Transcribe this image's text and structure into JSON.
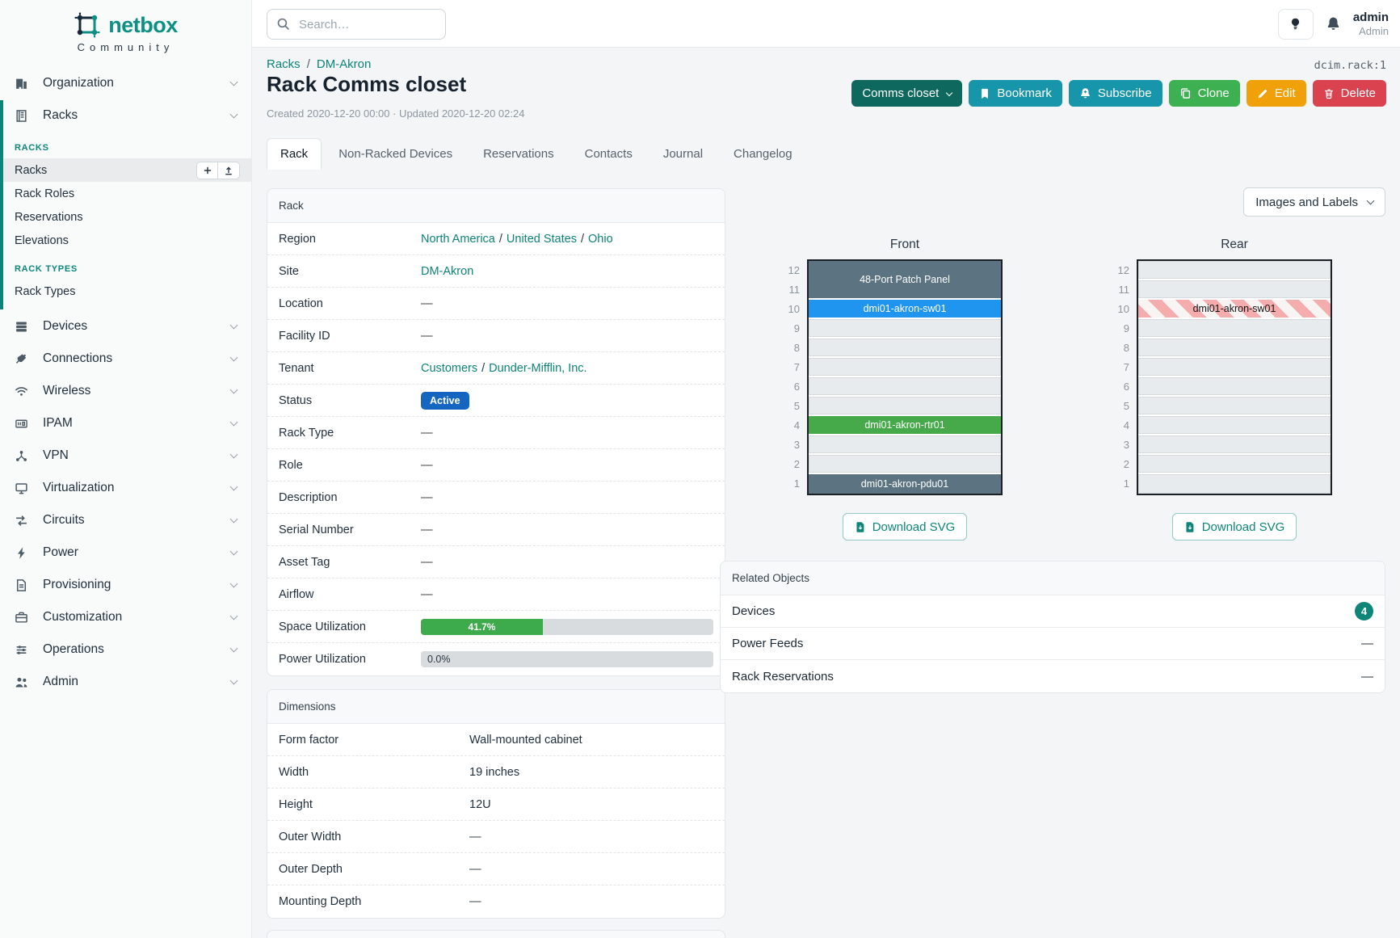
{
  "brand": {
    "name": "netbox",
    "subtitle": "Community"
  },
  "topbar": {
    "search_placeholder": "Search…",
    "user_name": "admin",
    "user_role": "Admin"
  },
  "object_type_id": "dcim.rack:1",
  "breadcrumb": {
    "items": [
      "Racks",
      "DM-Akron"
    ],
    "separator": "/"
  },
  "page": {
    "title": "Rack Comms closet",
    "meta": "Created 2020-12-20 00:00 · Updated 2020-12-20 02:24"
  },
  "actions": [
    {
      "name": "status-dropdown-button",
      "label": "Comms closet",
      "icon_right": "chevron-down-icon",
      "bg": "#0e685e"
    },
    {
      "name": "bookmark-button",
      "label": "Bookmark",
      "icon": "bookmark-icon",
      "bg": "#1795aa"
    },
    {
      "name": "subscribe-button",
      "label": "Subscribe",
      "icon": "bell-plus-icon",
      "bg": "#1795aa"
    },
    {
      "name": "clone-button",
      "label": "Clone",
      "icon": "copy-icon",
      "bg": "#3db052"
    },
    {
      "name": "edit-button",
      "label": "Edit",
      "icon": "pencil-icon",
      "bg": "#f0a009"
    },
    {
      "name": "delete-button",
      "label": "Delete",
      "icon": "trash-icon",
      "bg": "#d9424e"
    }
  ],
  "tabs": [
    {
      "label": "Rack",
      "active": true
    },
    {
      "label": "Non-Racked Devices"
    },
    {
      "label": "Reservations"
    },
    {
      "label": "Contacts"
    },
    {
      "label": "Journal"
    },
    {
      "label": "Changelog"
    }
  ],
  "sidebar": {
    "blocks": [
      {
        "type": "item",
        "icon": "organization-icon",
        "label": "Organization",
        "chevron": true
      },
      {
        "type": "accent",
        "children": [
          {
            "type": "item",
            "icon": "racks-icon",
            "label": "Racks",
            "chevron": true
          },
          {
            "type": "section",
            "label": "RACKS"
          },
          {
            "type": "subitem",
            "label": "Racks",
            "active": true,
            "action_icons": [
              "plus-icon",
              "upload-icon"
            ]
          },
          {
            "type": "subitem",
            "label": "Rack Roles"
          },
          {
            "type": "subitem",
            "label": "Reservations"
          },
          {
            "type": "subitem",
            "label": "Elevations"
          },
          {
            "type": "section",
            "label": "RACK TYPES"
          },
          {
            "type": "subitem",
            "label": "Rack Types"
          }
        ]
      },
      {
        "type": "item",
        "icon": "devices-icon",
        "label": "Devices",
        "chevron": true
      },
      {
        "type": "item",
        "icon": "connections-icon",
        "label": "Connections",
        "chevron": true
      },
      {
        "type": "item",
        "icon": "wireless-icon",
        "label": "Wireless",
        "chevron": true
      },
      {
        "type": "item",
        "icon": "ipam-icon",
        "label": "IPAM",
        "chevron": true
      },
      {
        "type": "item",
        "icon": "vpn-icon",
        "label": "VPN",
        "chevron": true
      },
      {
        "type": "item",
        "icon": "virtualization-icon",
        "label": "Virtualization",
        "chevron": true
      },
      {
        "type": "item",
        "icon": "circuits-icon",
        "label": "Circuits",
        "chevron": true
      },
      {
        "type": "item",
        "icon": "power-icon",
        "label": "Power",
        "chevron": true
      },
      {
        "type": "item",
        "icon": "provisioning-icon",
        "label": "Provisioning",
        "chevron": true
      },
      {
        "type": "item",
        "icon": "customization-icon",
        "label": "Customization",
        "chevron": true
      },
      {
        "type": "item",
        "icon": "operations-icon",
        "label": "Operations",
        "chevron": true
      },
      {
        "type": "item",
        "icon": "admin-icon",
        "label": "Admin",
        "chevron": true
      }
    ]
  },
  "rack_panel": {
    "title": "Rack",
    "rows": [
      {
        "label": "Region",
        "type": "links",
        "parts": [
          {
            "t": "North America",
            "link": true
          },
          {
            "t": "/"
          },
          {
            "t": "United States",
            "link": true
          },
          {
            "t": "/"
          },
          {
            "t": "Ohio",
            "link": true
          }
        ]
      },
      {
        "label": "Site",
        "type": "links",
        "parts": [
          {
            "t": "DM-Akron",
            "link": true
          }
        ]
      },
      {
        "label": "Location",
        "type": "text",
        "value": "—"
      },
      {
        "label": "Facility ID",
        "type": "text",
        "value": "—"
      },
      {
        "label": "Tenant",
        "type": "links",
        "parts": [
          {
            "t": "Customers",
            "link": true
          },
          {
            "t": "/"
          },
          {
            "t": "Dunder-Mifflin, Inc.",
            "link": true
          }
        ]
      },
      {
        "label": "Status",
        "type": "badge",
        "value": "Active",
        "color": "#1566c0"
      },
      {
        "label": "Rack Type",
        "type": "text",
        "value": "—"
      },
      {
        "label": "Role",
        "type": "text",
        "value": "—"
      },
      {
        "label": "Description",
        "type": "text",
        "value": "—"
      },
      {
        "label": "Serial Number",
        "type": "text",
        "value": "—"
      },
      {
        "label": "Asset Tag",
        "type": "text",
        "value": "—"
      },
      {
        "label": "Airflow",
        "type": "text",
        "value": "—"
      },
      {
        "label": "Space Utilization",
        "type": "progress",
        "percent": 41.7,
        "display": "41.7%",
        "bar_color": "#3daa4b"
      },
      {
        "label": "Power Utilization",
        "type": "progress",
        "percent": 0,
        "display": "0.0%",
        "bar_color": null
      }
    ]
  },
  "dimensions_panel": {
    "title": "Dimensions",
    "rows": [
      {
        "label": "Form factor",
        "type": "text",
        "value": "Wall-mounted cabinet"
      },
      {
        "label": "Width",
        "type": "text",
        "value": "19 inches"
      },
      {
        "label": "Height",
        "type": "text",
        "value": "12U"
      },
      {
        "label": "Outer Width",
        "type": "text",
        "value": "—"
      },
      {
        "label": "Outer Depth",
        "type": "text",
        "value": "—"
      },
      {
        "label": "Mounting Depth",
        "type": "text",
        "value": "—"
      }
    ]
  },
  "elevations": {
    "view_toggle_label": "Images and Labels",
    "download_label": "Download SVG",
    "front": {
      "title": "Front",
      "units": 12,
      "devices": [
        {
          "name": "48-Port Patch Panel",
          "top_unit": 12,
          "u_height": 2,
          "color": "#5c7482",
          "text_color": "#ffffff"
        },
        {
          "name": "dmi01-akron-sw01",
          "top_unit": 10,
          "u_height": 1,
          "color": "#2095ef",
          "text_color": "#ffffff"
        },
        {
          "name": "dmi01-akron-rtr01",
          "top_unit": 4,
          "u_height": 1,
          "color": "#46aa4b",
          "text_color": "#ffffff"
        },
        {
          "name": "dmi01-akron-pdu01",
          "top_unit": 1,
          "u_height": 1,
          "color": "#5c7482",
          "text_color": "#ffffff"
        }
      ]
    },
    "rear": {
      "title": "Rear",
      "units": 12,
      "devices": [
        {
          "name": "dmi01-akron-sw01",
          "top_unit": 10,
          "u_height": 1,
          "hatched": true,
          "text_color": "#111111"
        }
      ]
    }
  },
  "related_objects": {
    "title": "Related Objects",
    "rows": [
      {
        "label": "Devices",
        "badge": "4"
      },
      {
        "label": "Power Feeds",
        "value": "—"
      },
      {
        "label": "Rack Reservations",
        "value": "—"
      }
    ]
  },
  "colors": {
    "accent": "#0e8378",
    "brand_teal": "#0c9083",
    "status_active": "#1566c0",
    "progress_green": "#3daa4b",
    "related_badge": "#0d8577"
  }
}
